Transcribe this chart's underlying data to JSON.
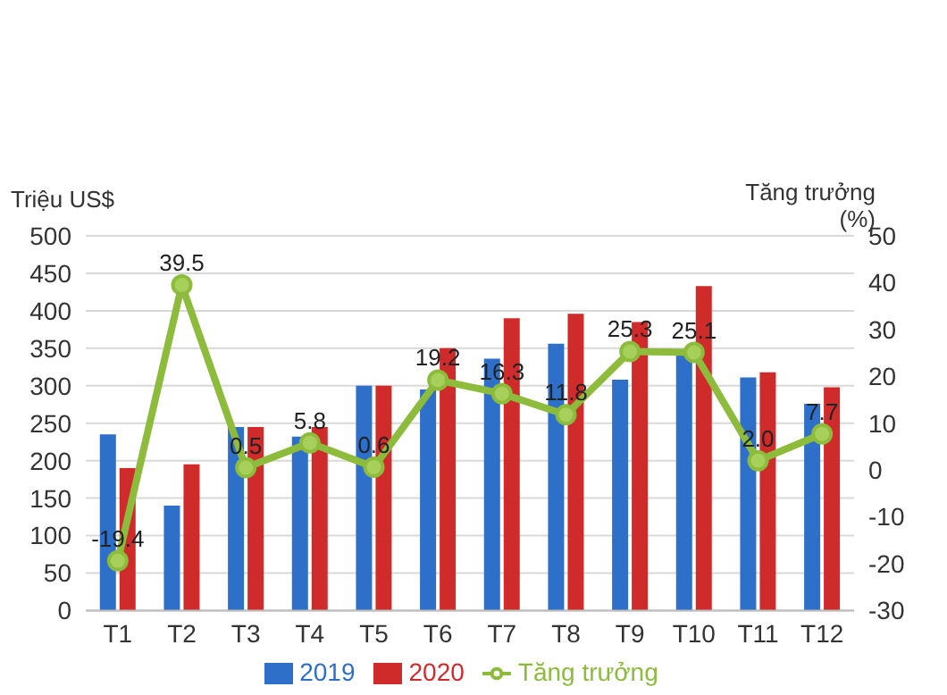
{
  "chart_data": {
    "type": "bar",
    "ylabel": "Triệu US$",
    "y2label": "Tăng trưởng (%)",
    "categories": [
      "T1",
      "T2",
      "T3",
      "T4",
      "T5",
      "T6",
      "T7",
      "T8",
      "T9",
      "T10",
      "T11",
      "T12"
    ],
    "series": [
      {
        "name": "2019",
        "color": "#2e6fc9",
        "values": [
          235,
          140,
          245,
          232,
          300,
          295,
          336,
          356,
          308,
          343,
          311,
          276
        ]
      },
      {
        "name": "2020",
        "color": "#d02b2b",
        "values": [
          190,
          195,
          245,
          245,
          300,
          350,
          390,
          396,
          385,
          433,
          318,
          298
        ]
      },
      {
        "name": "Tăng trưởng",
        "type": "line",
        "axis": "y2",
        "color": "#8dbb3c",
        "marker": "circle",
        "values": [
          -19.4,
          39.5,
          0.5,
          5.8,
          0.6,
          19.2,
          16.3,
          11.8,
          25.3,
          25.1,
          2.0,
          7.7
        ],
        "value_labels": [
          "-19.4",
          "39.5",
          "0.5",
          "5.8",
          "0.6",
          "19.2",
          "16.3",
          "11.8",
          "25.3",
          "25.1",
          "2.0",
          "7.7"
        ]
      }
    ],
    "ylim": [
      0,
      500
    ],
    "yticks": [
      0,
      50,
      100,
      150,
      200,
      250,
      300,
      350,
      400,
      450,
      500
    ],
    "y2lim": [
      -30,
      50
    ],
    "y2ticks": [
      -30,
      -20,
      -10,
      0,
      10,
      20,
      30,
      40,
      50
    ],
    "grid": "y",
    "legend": "bottom"
  }
}
